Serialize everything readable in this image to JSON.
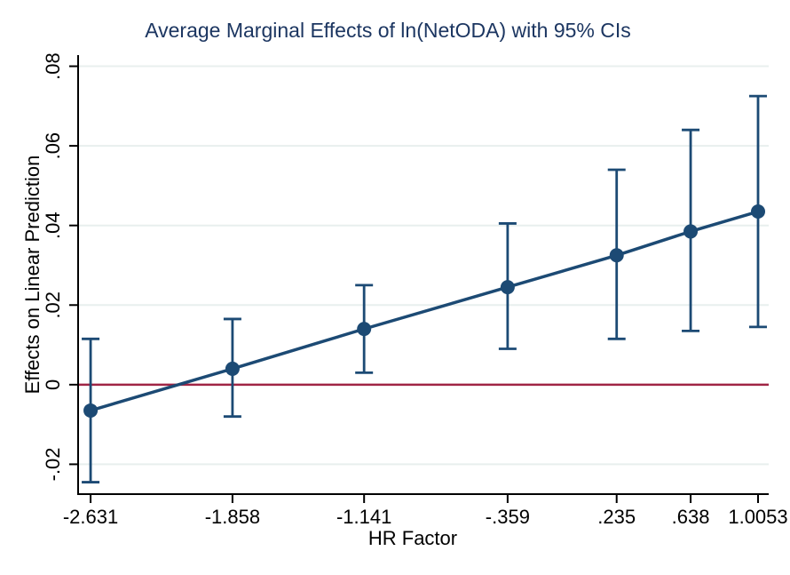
{
  "chart_data": {
    "type": "line",
    "title": "Average Marginal Effects of ln(NetODA) with 95% CIs",
    "xlabel": "HR Factor",
    "ylabel": "Effects on Linear Prediction",
    "x": [
      -2.631,
      -1.858,
      -1.141,
      -0.359,
      0.235,
      0.638,
      1.0053
    ],
    "x_tick_labels": [
      "-2.631",
      "-1.858",
      "-1.141",
      "-.359",
      ".235",
      ".638",
      "1.0053"
    ],
    "yticks": [
      -0.02,
      0,
      0.02,
      0.04,
      0.06,
      0.08
    ],
    "ytick_labels": [
      "-.02",
      "0",
      ".02",
      ".04",
      ".06",
      ".08"
    ],
    "series": [
      {
        "estimates": [
          -0.0065,
          0.004,
          0.014,
          0.0245,
          0.0325,
          0.0385,
          0.0435
        ],
        "ci_low": [
          -0.0245,
          -0.008,
          0.003,
          0.009,
          0.0115,
          0.0135,
          0.0145
        ],
        "ci_high": [
          0.0115,
          0.0165,
          0.025,
          0.0405,
          0.054,
          0.064,
          0.0725
        ]
      }
    ],
    "reference_line_y": 0,
    "xlim": [
      -2.699,
      1.0633
    ],
    "ylim": [
      -0.0275,
      0.0828
    ],
    "grid": true,
    "legend": "none",
    "colors": {
      "series": "#1c4a74",
      "reference_line": "#a02545",
      "grid": "#e8efee",
      "axis": "#000000",
      "title": "#1c3661",
      "background": "#ffffff"
    }
  }
}
